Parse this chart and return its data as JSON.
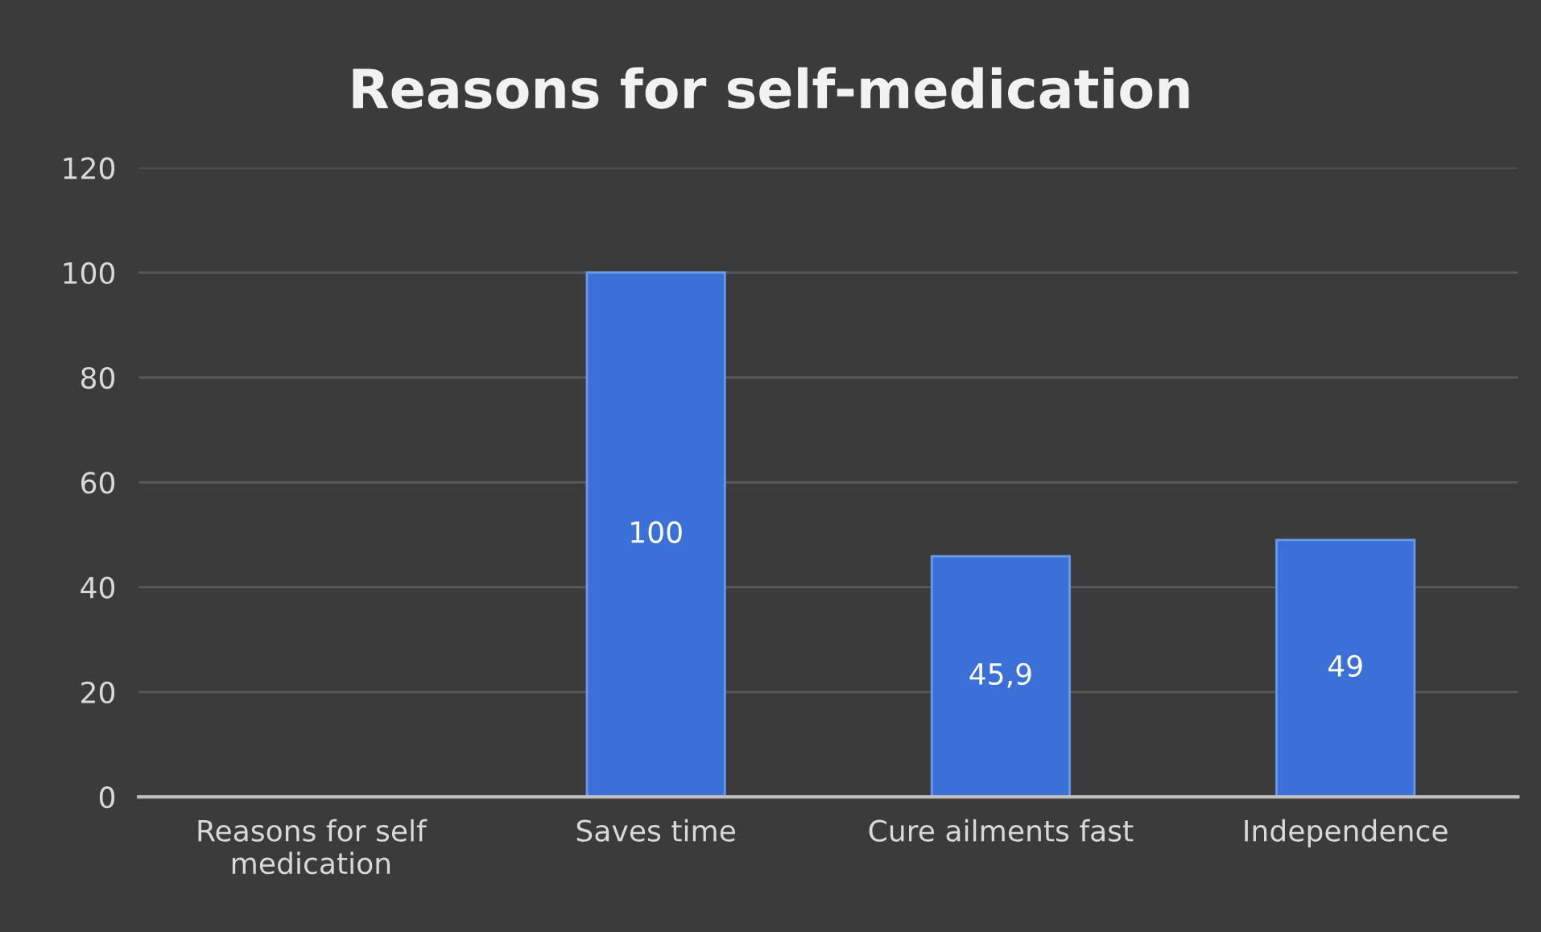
{
  "chart_data": {
    "type": "bar",
    "title": "Reasons for self-medication",
    "categories": [
      "Reasons for self\nmedication",
      "Saves time",
      "Cure ailments fast",
      "Independence"
    ],
    "values": [
      null,
      100,
      45.9,
      49
    ],
    "value_labels": [
      null,
      "100",
      "45,9",
      "49"
    ],
    "color": "#3a70d8",
    "ylim": [
      0,
      120
    ],
    "yticks": [
      0,
      20,
      40,
      60,
      80,
      100,
      120
    ],
    "grid": "y",
    "legend": false
  }
}
